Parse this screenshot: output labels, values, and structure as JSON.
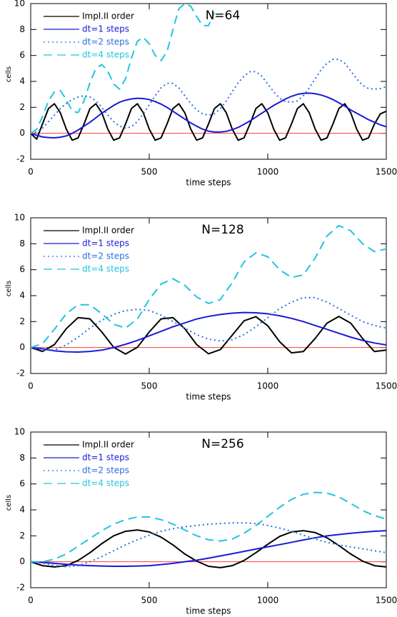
{
  "chart_data": [
    {
      "type": "line",
      "title": "N=64",
      "xlabel": "time steps",
      "ylabel": "cells",
      "xlim": [
        0,
        1500
      ],
      "ylim": [
        -2,
        10
      ],
      "xticks": [
        0,
        500,
        1000,
        1500
      ],
      "yticks": [
        -2,
        0,
        2,
        4,
        6,
        8,
        10
      ],
      "reference_line": {
        "value": 0,
        "color": "#ff3b3b"
      },
      "legend": "upper left",
      "x": [
        0,
        25,
        50,
        75,
        100,
        125,
        150,
        175,
        200,
        225,
        250,
        275,
        300,
        325,
        350,
        375,
        400,
        425,
        450,
        475,
        500,
        525,
        550,
        575,
        600,
        625,
        650,
        675,
        700,
        725,
        750,
        775,
        800,
        825,
        850,
        875,
        900,
        925,
        950,
        975,
        1000,
        1025,
        1050,
        1075,
        1100,
        1125,
        1150,
        1175,
        1200,
        1225,
        1250,
        1275,
        1300,
        1325,
        1350,
        1375,
        1400,
        1425,
        1450,
        1475,
        1500
      ],
      "series": [
        {
          "name": "Impl.II order",
          "color": "#000000",
          "style": "solid",
          "values": [
            0,
            -0.45,
            0.73,
            1.91,
            2.28,
            1.58,
            0.33,
            -0.53,
            -0.35,
            0.72,
            1.91,
            2.28,
            1.58,
            0.33,
            -0.53,
            -0.35,
            0.72,
            1.91,
            2.28,
            1.58,
            0.33,
            -0.53,
            -0.35,
            0.72,
            1.91,
            2.28,
            1.58,
            0.33,
            -0.53,
            -0.35,
            0.72,
            1.91,
            2.28,
            1.58,
            0.33,
            -0.53,
            -0.35,
            0.72,
            1.91,
            2.28,
            1.58,
            0.33,
            -0.53,
            -0.35,
            0.72,
            1.91,
            2.28,
            1.58,
            0.33,
            -0.53,
            -0.35,
            0.72,
            1.91,
            2.28,
            1.58,
            0.33,
            -0.53,
            -0.35,
            0.72,
            1.5,
            1.7
          ]
        },
        {
          "name": "dt=1 steps",
          "color": "#1a1ad8",
          "style": "solid",
          "values": [
            0,
            -0.15,
            -0.28,
            -0.33,
            -0.35,
            -0.3,
            -0.2,
            0,
            0.25,
            0.55,
            0.85,
            1.2,
            1.55,
            1.85,
            2.15,
            2.4,
            2.55,
            2.65,
            2.7,
            2.68,
            2.6,
            2.45,
            2.25,
            2.0,
            1.7,
            1.4,
            1.1,
            0.8,
            0.55,
            0.32,
            0.17,
            0.1,
            0.1,
            0.15,
            0.28,
            0.45,
            0.7,
            0.95,
            1.25,
            1.55,
            1.85,
            2.15,
            2.4,
            2.65,
            2.85,
            3.0,
            3.08,
            3.1,
            3.05,
            2.95,
            2.8,
            2.6,
            2.35,
            2.1,
            1.8,
            1.55,
            1.3,
            1.05,
            0.85,
            0.65,
            0.5
          ]
        },
        {
          "name": "dt=2 steps",
          "color": "#2a6fe0",
          "style": "dotted",
          "values": [
            0,
            0.1,
            0.4,
            0.9,
            1.4,
            1.9,
            2.3,
            2.6,
            2.8,
            2.9,
            2.8,
            2.5,
            2.0,
            1.4,
            0.9,
            0.55,
            0.4,
            0.5,
            0.9,
            1.5,
            2.2,
            2.9,
            3.5,
            3.85,
            3.85,
            3.5,
            2.9,
            2.3,
            1.8,
            1.5,
            1.4,
            1.5,
            1.9,
            2.5,
            3.2,
            3.9,
            4.4,
            4.75,
            4.75,
            4.4,
            3.8,
            3.2,
            2.7,
            2.45,
            2.4,
            2.5,
            2.9,
            3.5,
            4.2,
            4.9,
            5.4,
            5.7,
            5.7,
            5.4,
            4.8,
            4.2,
            3.7,
            3.45,
            3.4,
            3.45,
            3.6
          ]
        },
        {
          "name": "dt=4 steps",
          "color": "#22c4e0",
          "style": "dashed",
          "values": [
            0,
            0.3,
            1.3,
            2.5,
            3.2,
            3.3,
            2.6,
            1.7,
            1.6,
            2.5,
            3.9,
            5.0,
            5.3,
            4.8,
            3.8,
            3.4,
            4.2,
            5.8,
            7.1,
            7.4,
            6.9,
            6.0,
            5.6,
            6.3,
            8.0,
            9.6,
            10.0,
            9.8,
            9.0,
            8.3,
            8.3,
            9.3,
            null,
            null,
            null,
            null,
            null,
            null,
            null,
            null,
            null,
            null,
            null,
            null,
            null,
            null,
            null,
            null,
            null,
            null,
            null,
            null,
            null,
            null,
            null,
            null,
            null,
            null,
            null,
            null,
            null
          ]
        }
      ]
    },
    {
      "type": "line",
      "title": "N=128",
      "xlabel": "time steps",
      "ylabel": "cells",
      "xlim": [
        0,
        1500
      ],
      "ylim": [
        -2,
        10
      ],
      "xticks": [
        0,
        500,
        1000,
        1500
      ],
      "yticks": [
        -2,
        0,
        2,
        4,
        6,
        8,
        10
      ],
      "reference_line": {
        "value": 0,
        "color": "#ff3b3b"
      },
      "legend": "upper left",
      "x": [
        0,
        50,
        100,
        150,
        200,
        250,
        300,
        350,
        400,
        450,
        500,
        550,
        600,
        650,
        700,
        750,
        800,
        850,
        900,
        950,
        1000,
        1050,
        1100,
        1150,
        1200,
        1250,
        1300,
        1350,
        1400,
        1450,
        1500
      ],
      "series": [
        {
          "name": "Impl.II order",
          "color": "#000000",
          "style": "solid",
          "values": [
            0,
            -0.3,
            0.23,
            1.45,
            2.31,
            2.21,
            1.2,
            0.02,
            -0.5,
            0.02,
            1.2,
            2.21,
            2.31,
            1.45,
            0.23,
            -0.48,
            -0.16,
            0.95,
            2.06,
            2.38,
            1.68,
            0.45,
            -0.41,
            -0.31,
            0.7,
            1.88,
            2.4,
            1.88,
            0.7,
            -0.31,
            -0.2
          ]
        },
        {
          "name": "dt=1 steps",
          "color": "#1a1ad8",
          "style": "solid",
          "values": [
            0,
            -0.1,
            -0.25,
            -0.33,
            -0.35,
            -0.3,
            -0.2,
            0,
            0.25,
            0.55,
            0.9,
            1.25,
            1.6,
            1.9,
            2.2,
            2.4,
            2.55,
            2.65,
            2.7,
            2.68,
            2.6,
            2.45,
            2.25,
            2.0,
            1.7,
            1.4,
            1.1,
            0.8,
            0.55,
            0.35,
            0.2
          ]
        },
        {
          "name": "dt=2 steps",
          "color": "#2a6fe0",
          "style": "dotted",
          "values": [
            0,
            -0.2,
            -0.2,
            0.2,
            0.8,
            1.5,
            2.1,
            2.55,
            2.85,
            2.95,
            2.85,
            2.5,
            2.0,
            1.5,
            1.0,
            0.65,
            0.5,
            0.6,
            1.0,
            1.6,
            2.3,
            3.0,
            3.5,
            3.85,
            3.85,
            3.5,
            3.0,
            2.5,
            2.0,
            1.7,
            1.5
          ]
        },
        {
          "name": "dt=4 steps",
          "color": "#22c4e0",
          "style": "dashed",
          "values": [
            0,
            0.3,
            1.4,
            2.6,
            3.3,
            3.3,
            2.6,
            1.8,
            1.5,
            2.2,
            3.7,
            4.9,
            5.3,
            4.8,
            3.9,
            3.4,
            3.7,
            5.0,
            6.6,
            7.3,
            7.0,
            6.0,
            5.4,
            5.6,
            6.9,
            8.6,
            9.4,
            9.0,
            8.0,
            7.4,
            7.6
          ]
        }
      ]
    },
    {
      "type": "line",
      "title": "N=256",
      "xlabel": "time steps",
      "ylabel": "cells",
      "xlim": [
        0,
        1500
      ],
      "ylim": [
        -2,
        10
      ],
      "xticks": [
        0,
        500,
        1000,
        1500
      ],
      "yticks": [
        -2,
        0,
        2,
        4,
        6,
        8,
        10
      ],
      "reference_line": {
        "value": 0,
        "color": "#ff3b3b"
      },
      "legend": "upper left",
      "x": [
        0,
        50,
        100,
        150,
        200,
        250,
        300,
        350,
        400,
        450,
        500,
        550,
        600,
        650,
        700,
        750,
        800,
        850,
        900,
        950,
        1000,
        1050,
        1100,
        1150,
        1200,
        1250,
        1300,
        1350,
        1400,
        1450,
        1500
      ],
      "series": [
        {
          "name": "Impl.II order",
          "color": "#000000",
          "style": "solid",
          "values": [
            0,
            -0.3,
            -0.4,
            -0.3,
            0.1,
            0.7,
            1.4,
            2.0,
            2.35,
            2.45,
            2.3,
            1.9,
            1.3,
            0.6,
            0.05,
            -0.35,
            -0.45,
            -0.3,
            0.1,
            0.7,
            1.35,
            1.95,
            2.3,
            2.4,
            2.25,
            1.85,
            1.25,
            0.6,
            0.05,
            -0.3,
            -0.4
          ]
        },
        {
          "name": "dt=1 steps",
          "color": "#1a1ad8",
          "style": "solid",
          "values": [
            0,
            -0.05,
            -0.12,
            -0.2,
            -0.26,
            -0.3,
            -0.33,
            -0.35,
            -0.35,
            -0.33,
            -0.3,
            -0.22,
            -0.12,
            0,
            0.12,
            0.28,
            0.45,
            0.62,
            0.8,
            0.98,
            1.15,
            1.32,
            1.5,
            1.68,
            1.85,
            2.0,
            2.1,
            2.2,
            2.28,
            2.35,
            2.4
          ]
        },
        {
          "name": "dt=2 steps",
          "color": "#2a6fe0",
          "style": "dotted",
          "values": [
            0,
            -0.1,
            -0.3,
            -0.38,
            -0.3,
            0,
            0.4,
            0.85,
            1.3,
            1.7,
            2.05,
            2.35,
            2.55,
            2.7,
            2.8,
            2.9,
            2.95,
            3.0,
            3.0,
            2.95,
            2.8,
            2.6,
            2.35,
            2.05,
            1.75,
            1.5,
            1.3,
            1.15,
            1.0,
            0.85,
            0.7
          ]
        },
        {
          "name": "dt=4 steps",
          "color": "#22c4e0",
          "style": "dashed",
          "values": [
            0,
            0,
            0.2,
            0.6,
            1.2,
            1.8,
            2.4,
            2.9,
            3.25,
            3.45,
            3.45,
            3.25,
            2.9,
            2.45,
            2.0,
            1.7,
            1.6,
            1.75,
            2.2,
            2.8,
            3.5,
            4.2,
            4.8,
            5.2,
            5.35,
            5.3,
            5.0,
            4.5,
            3.95,
            3.55,
            3.3
          ]
        }
      ]
    }
  ]
}
